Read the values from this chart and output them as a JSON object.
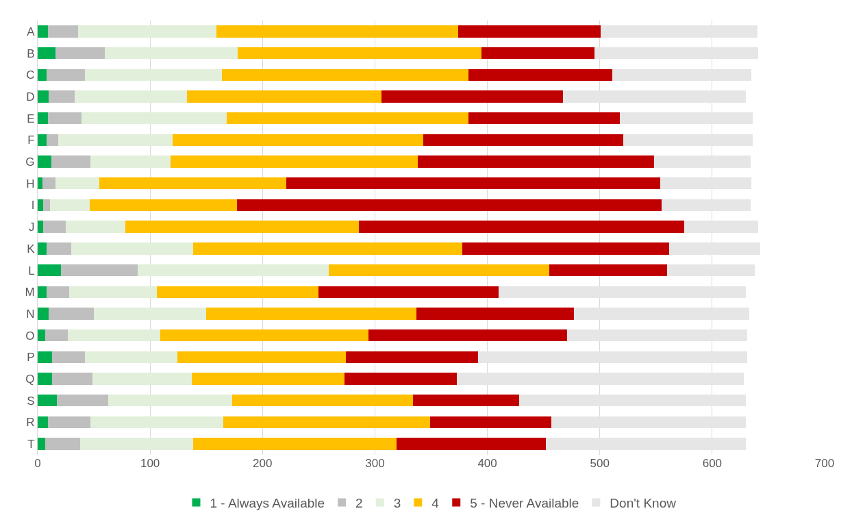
{
  "chart_data": {
    "type": "bar",
    "orientation": "horizontal",
    "stacked": true,
    "categories": [
      "A",
      "B",
      "C",
      "D",
      "E",
      "F",
      "G",
      "H",
      "I",
      "J",
      "K",
      "L",
      "M",
      "N",
      "O",
      "P",
      "Q",
      "S",
      "R",
      "T"
    ],
    "series": [
      {
        "name": "1 - Always Available",
        "color": "#00b050",
        "values": [
          9,
          16,
          8,
          10,
          9,
          8,
          12,
          4,
          5,
          5,
          8,
          21,
          8,
          10,
          7,
          13,
          13,
          17,
          9,
          7
        ]
      },
      {
        "name": "2",
        "color": "#bfbfbf",
        "values": [
          27,
          44,
          34,
          23,
          30,
          10,
          35,
          12,
          6,
          20,
          22,
          68,
          20,
          40,
          20,
          29,
          36,
          46,
          38,
          31
        ]
      },
      {
        "name": "3",
        "color": "#e2efda",
        "values": [
          123,
          118,
          122,
          100,
          129,
          102,
          71,
          39,
          35,
          53,
          108,
          170,
          78,
          100,
          82,
          82,
          88,
          110,
          118,
          100
        ]
      },
      {
        "name": "4",
        "color": "#ffc000",
        "values": [
          215,
          217,
          219,
          173,
          215,
          223,
          220,
          166,
          131,
          208,
          240,
          196,
          144,
          187,
          185,
          150,
          136,
          161,
          184,
          181
        ]
      },
      {
        "name": "5 - Never Available",
        "color": "#c00000",
        "values": [
          127,
          100,
          128,
          161,
          135,
          178,
          210,
          333,
          378,
          289,
          184,
          105,
          160,
          140,
          177,
          118,
          100,
          94,
          108,
          133
        ]
      },
      {
        "name": "Don't Know",
        "color": "#e7e6e6",
        "values": [
          139,
          146,
          124,
          163,
          118,
          115,
          86,
          81,
          79,
          66,
          81,
          78,
          220,
          156,
          160,
          239,
          255,
          202,
          173,
          178
        ]
      }
    ],
    "xlim": [
      0,
      700
    ],
    "xticks": [
      0,
      100,
      200,
      300,
      400,
      500,
      600,
      700
    ],
    "grid": "x",
    "legend": "bottom"
  }
}
